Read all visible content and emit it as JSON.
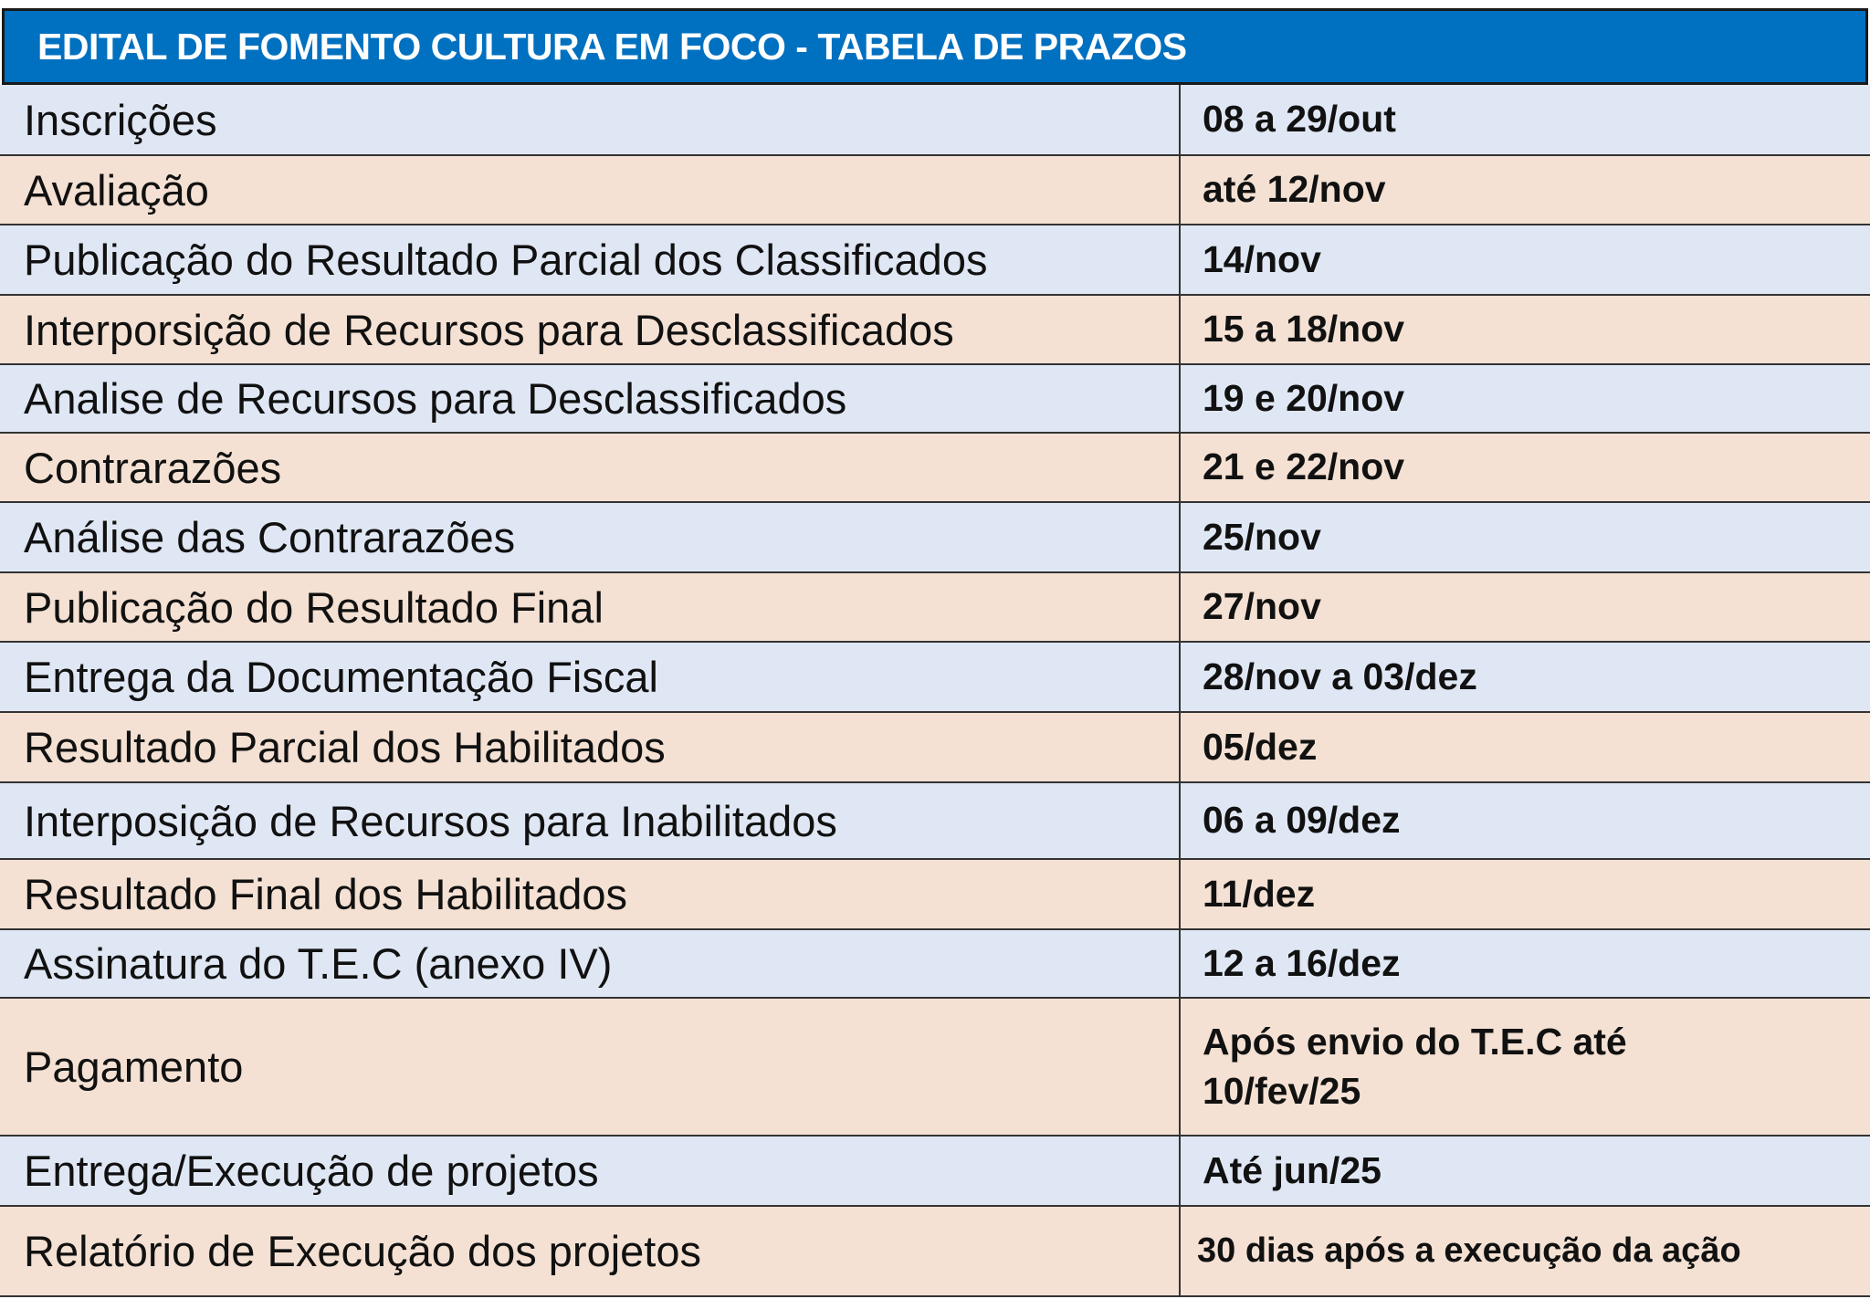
{
  "title": "EDITAL DE FOMENTO CULTURA EM FOCO - TABELA DE PRAZOS",
  "colors": {
    "header": "#0070c0",
    "row_blue": "#e0e7f4",
    "row_tan": "#f4e1d3"
  },
  "rows": [
    {
      "stage": "Inscrições",
      "deadline": "08 a 29/out"
    },
    {
      "stage": "Avaliação",
      "deadline": "até 12/nov"
    },
    {
      "stage": "Publicação do Resultado Parcial dos Classificados",
      "deadline": "14/nov"
    },
    {
      "stage": "Interporsição de Recursos para Desclassificados",
      "deadline": "15 a 18/nov"
    },
    {
      "stage": "Analise de Recursos para Desclassificados",
      "deadline": "19 e 20/nov"
    },
    {
      "stage": "Contrarazões",
      "deadline": "21 e 22/nov"
    },
    {
      "stage": "Análise das Contrarazões",
      "deadline": "25/nov"
    },
    {
      "stage": "Publicação do Resultado Final",
      "deadline": "27/nov"
    },
    {
      "stage": "Entrega da Documentação Fiscal",
      "deadline": "28/nov a 03/dez"
    },
    {
      "stage": "Resultado Parcial dos Habilitados",
      "deadline": "05/dez"
    },
    {
      "stage": "Interposição de Recursos para Inabilitados",
      "deadline": "06 a 09/dez"
    },
    {
      "stage": "Resultado Final dos Habilitados",
      "deadline": "11/dez"
    },
    {
      "stage": "Assinatura do T.E.C (anexo IV)",
      "deadline": "12 a 16/dez"
    },
    {
      "stage": "Pagamento",
      "deadline": "Após envio do T.E.C até 10/fev/25"
    },
    {
      "stage": "Entrega/Execução de projetos",
      "deadline": "Até jun/25"
    },
    {
      "stage": "Relatório de Execução dos projetos",
      "deadline": "30 dias após a execução da ação"
    }
  ]
}
